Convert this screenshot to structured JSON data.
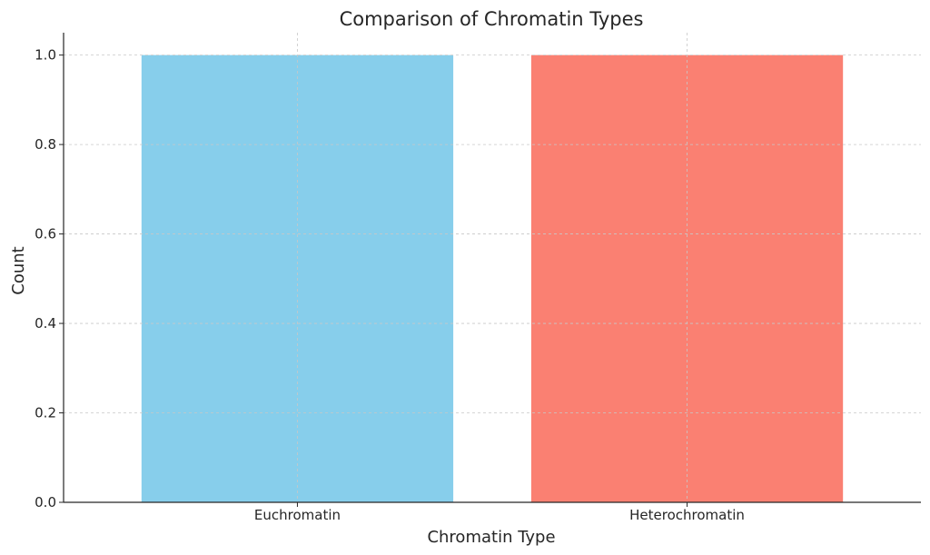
{
  "chart_data": {
    "type": "bar",
    "title": "Comparison of Chromatin Types",
    "xlabel": "Chromatin Type",
    "ylabel": "Count",
    "categories": [
      "Euchromatin",
      "Heterochromatin"
    ],
    "values": [
      1,
      1
    ],
    "colors": [
      "#87CEEB",
      "#FA8072"
    ],
    "ylim": [
      0,
      1.05
    ],
    "yticks": [
      0.0,
      0.2,
      0.4,
      0.6,
      0.8,
      1.0
    ],
    "ytick_labels": [
      "0.0",
      "0.2",
      "0.4",
      "0.6",
      "0.8",
      "1.0"
    ],
    "grid": true,
    "grid_style": "dashed"
  }
}
